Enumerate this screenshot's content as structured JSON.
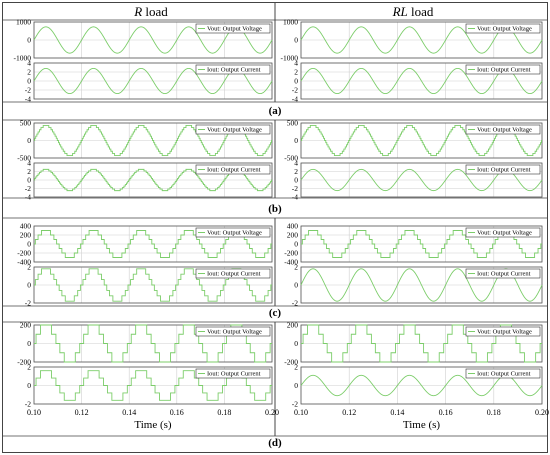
{
  "header": {
    "left": {
      "italic": "R",
      "rest": " load"
    },
    "right": {
      "italic": "RL",
      "rest": " load"
    }
  },
  "row_labels": [
    "(a)",
    "(b)",
    "(c)",
    "(d)"
  ],
  "legend": {
    "voltage": "Vout: Output Voltage",
    "current": "Iout: Output Current"
  },
  "x_axis": {
    "label": "Time (s)",
    "ticks": [
      "0.10",
      "0.12",
      "0.14",
      "0.16",
      "0.18",
      "0.20"
    ],
    "range": [
      0.1,
      0.2
    ]
  },
  "colors": {
    "trace": "#7ccd6a",
    "legend_border": "#333333",
    "grid": "#cfcfcf"
  },
  "chart_data": [
    {
      "type": "line",
      "row": "a",
      "load": "R",
      "series": [
        {
          "name": "Vout: Output Voltage",
          "shape": "sine",
          "amplitude": 730,
          "steps": 0,
          "frequency_hz": 50
        }
      ],
      "ylim": [
        -1000,
        1000
      ],
      "yticks": [
        1000,
        0,
        -1000
      ]
    },
    {
      "type": "line",
      "row": "a",
      "load": "R",
      "series": [
        {
          "name": "Iout: Output Current",
          "shape": "sine",
          "amplitude": 2.8,
          "steps": 0,
          "frequency_hz": 50
        }
      ],
      "ylim": [
        -4,
        4
      ],
      "yticks": [
        4,
        2,
        0,
        -2,
        -4
      ]
    },
    {
      "type": "line",
      "row": "a",
      "load": "RL",
      "series": [
        {
          "name": "Vout: Output Voltage",
          "shape": "sine",
          "amplitude": 730,
          "steps": 0,
          "frequency_hz": 50
        }
      ],
      "ylim": [
        -1000,
        1000
      ],
      "yticks": [
        1000,
        0,
        -1000
      ]
    },
    {
      "type": "line",
      "row": "a",
      "load": "RL",
      "series": [
        {
          "name": "Iout: Output Current",
          "shape": "sine",
          "amplitude": 2.8,
          "steps": 0,
          "frequency_hz": 50
        }
      ],
      "ylim": [
        -4,
        4
      ],
      "yticks": [
        4,
        2,
        0,
        -2,
        -4
      ]
    },
    {
      "type": "line",
      "row": "b",
      "load": "R",
      "series": [
        {
          "name": "Vout: Output Voltage",
          "shape": "staircase",
          "amplitude": 430,
          "steps": 7,
          "frequency_hz": 50
        }
      ],
      "ylim": [
        -500,
        500
      ],
      "yticks": [
        500,
        0,
        -500
      ]
    },
    {
      "type": "line",
      "row": "b",
      "load": "R",
      "series": [
        {
          "name": "Iout: Output Current",
          "shape": "staircase",
          "amplitude": 2.5,
          "steps": 7,
          "frequency_hz": 50
        }
      ],
      "ylim": [
        -4,
        4
      ],
      "yticks": [
        4,
        2,
        0,
        -2,
        -4
      ]
    },
    {
      "type": "line",
      "row": "b",
      "load": "RL",
      "series": [
        {
          "name": "Vout: Output Voltage",
          "shape": "staircase",
          "amplitude": 430,
          "steps": 7,
          "frequency_hz": 50
        }
      ],
      "ylim": [
        -500,
        500
      ],
      "yticks": [
        500,
        0,
        -500
      ]
    },
    {
      "type": "line",
      "row": "b",
      "load": "RL",
      "series": [
        {
          "name": "Iout: Output Current",
          "shape": "sine",
          "amplitude": 2.5,
          "steps": 0,
          "frequency_hz": 50
        }
      ],
      "ylim": [
        -4,
        4
      ],
      "yticks": [
        4,
        2,
        0,
        -2,
        -4
      ]
    },
    {
      "type": "line",
      "row": "c",
      "load": "R",
      "series": [
        {
          "name": "Vout: Output Voltage",
          "shape": "staircase",
          "amplitude": 300,
          "steps": 3,
          "frequency_hz": 50
        }
      ],
      "ylim": [
        -400,
        400
      ],
      "yticks": [
        400,
        200,
        0,
        -200,
        -400
      ]
    },
    {
      "type": "line",
      "row": "c",
      "load": "R",
      "series": [
        {
          "name": "Iout: Output Current",
          "shape": "staircase",
          "amplitude": 1.8,
          "steps": 3,
          "frequency_hz": 50
        }
      ],
      "ylim": [
        -2,
        2
      ],
      "yticks": [
        2,
        0,
        -2
      ]
    },
    {
      "type": "line",
      "row": "c",
      "load": "RL",
      "series": [
        {
          "name": "Vout: Output Voltage",
          "shape": "staircase",
          "amplitude": 300,
          "steps": 3,
          "frequency_hz": 50
        }
      ],
      "ylim": [
        -400,
        400
      ],
      "yticks": [
        400,
        200,
        0,
        -200,
        -400
      ]
    },
    {
      "type": "line",
      "row": "c",
      "load": "RL",
      "series": [
        {
          "name": "Iout: Output Current",
          "shape": "sine",
          "amplitude": 1.8,
          "steps": 0,
          "frequency_hz": 50
        }
      ],
      "ylim": [
        -2,
        2
      ],
      "yticks": [
        2,
        0,
        -2
      ]
    },
    {
      "type": "line",
      "row": "d",
      "load": "R",
      "series": [
        {
          "name": "Vout: Output Voltage",
          "shape": "staircase",
          "amplitude": 200,
          "steps": 2,
          "frequency_hz": 50
        }
      ],
      "ylim": [
        -200,
        200
      ],
      "yticks": [
        200,
        0,
        -200
      ]
    },
    {
      "type": "line",
      "row": "d",
      "load": "R",
      "series": [
        {
          "name": "Iout: Output Current",
          "shape": "staircase",
          "amplitude": 1.6,
          "steps": 2,
          "frequency_hz": 50
        }
      ],
      "ylim": [
        -2,
        2
      ],
      "yticks": [
        2,
        0,
        -2
      ]
    },
    {
      "type": "line",
      "row": "d",
      "load": "RL",
      "series": [
        {
          "name": "Vout: Output Voltage",
          "shape": "staircase",
          "amplitude": 200,
          "steps": 2,
          "frequency_hz": 50
        }
      ],
      "ylim": [
        -200,
        200
      ],
      "yticks": [
        200,
        0,
        -200
      ]
    },
    {
      "type": "line",
      "row": "d",
      "load": "RL",
      "series": [
        {
          "name": "Iout: Output Current",
          "shape": "sine",
          "amplitude": 1.1,
          "steps": 0,
          "frequency_hz": 50
        }
      ],
      "ylim": [
        -2,
        2
      ],
      "yticks": [
        2,
        0,
        -2
      ]
    }
  ]
}
